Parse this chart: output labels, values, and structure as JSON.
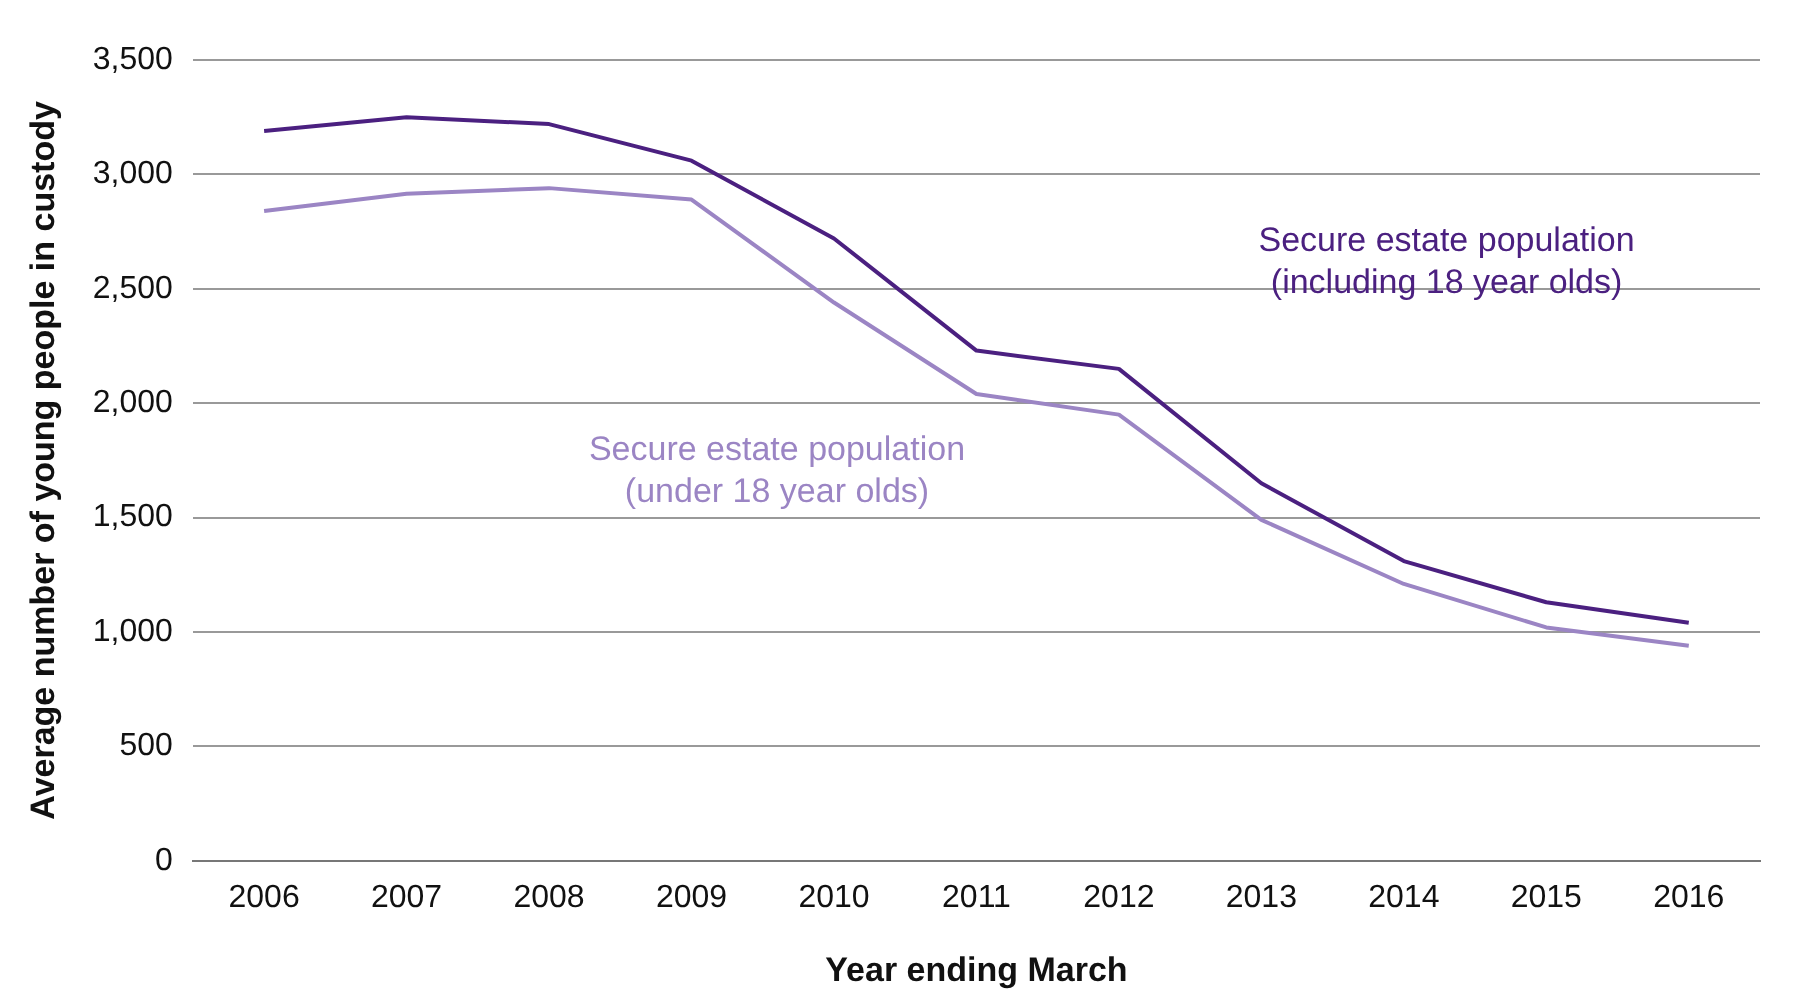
{
  "chart_data": {
    "type": "line",
    "xlabel": "Year ending March",
    "ylabel": "Average number of young people in custody",
    "categories": [
      "2006",
      "2007",
      "2008",
      "2009",
      "2010",
      "2011",
      "2012",
      "2013",
      "2014",
      "2015",
      "2016"
    ],
    "series": [
      {
        "name": "Secure estate population\n(including 18 year olds)",
        "color": "#4b2080",
        "values": [
          3190,
          3250,
          3220,
          3060,
          2720,
          2230,
          2150,
          1650,
          1310,
          1130,
          1040
        ]
      },
      {
        "name": "Secure estate population\n(under 18 year olds)",
        "color": "#9b85c4",
        "values": [
          2840,
          2915,
          2940,
          2890,
          2440,
          2040,
          1950,
          1490,
          1210,
          1020,
          940
        ]
      }
    ],
    "ylim": [
      0,
      3500
    ],
    "yticks": [
      {
        "value": 0,
        "label": "0"
      },
      {
        "value": 500,
        "label": "500"
      },
      {
        "value": 1000,
        "label": "1,000"
      },
      {
        "value": 1500,
        "label": "1,500"
      },
      {
        "value": 2000,
        "label": "2,000"
      },
      {
        "value": 2500,
        "label": "2,500"
      },
      {
        "value": 3000,
        "label": "3,000"
      },
      {
        "value": 3500,
        "label": "3,500"
      }
    ],
    "grid": "y",
    "legend": false,
    "marker": "none",
    "line_style": "solid"
  }
}
